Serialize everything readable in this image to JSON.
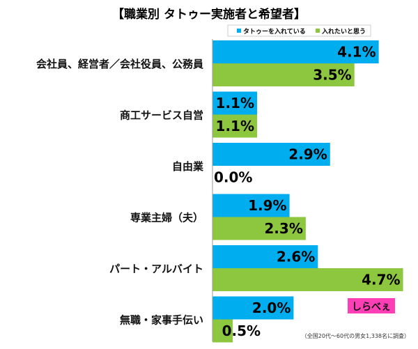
{
  "chart_data": {
    "type": "bar",
    "orientation": "horizontal",
    "title": "【職業別 タトゥー実施者と希望者】",
    "categories": [
      "会社員、経営者／会社役員、公務員",
      "商工サービス自営",
      "自由業",
      "専業主婦（夫）",
      "パート・アルバイト",
      "無職・家事手伝い"
    ],
    "series": [
      {
        "name": "タトゥーを入れている",
        "color": "#00aeef",
        "values": [
          4.1,
          1.1,
          2.9,
          1.9,
          2.6,
          2.0
        ]
      },
      {
        "name": "入れたいと思う",
        "color": "#8dc63f",
        "values": [
          3.5,
          1.1,
          0.0,
          2.3,
          4.7,
          0.5
        ]
      }
    ],
    "value_suffix": "%",
    "legend_position": "top",
    "grid": false,
    "xlim": [
      0,
      4.8
    ]
  },
  "footnote": "（全国20代～60代の男女1,338名に調査）",
  "logo": {
    "text": "しらべぇ",
    "color": "#ff3fb5"
  }
}
